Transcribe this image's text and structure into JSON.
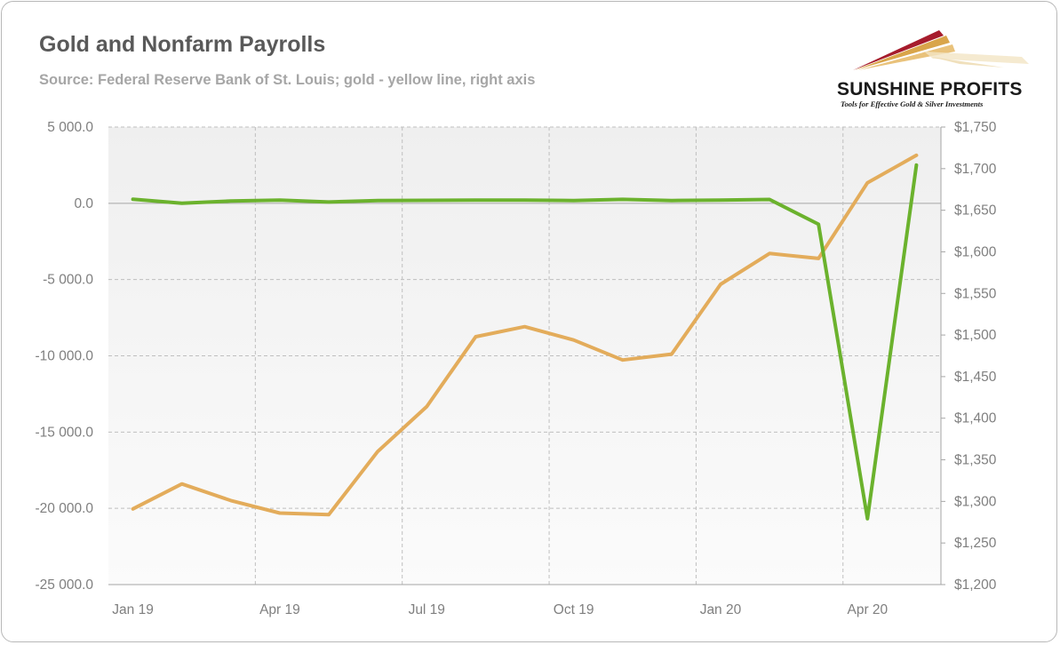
{
  "header": {
    "title": "Gold and Nonfarm Payrolls",
    "subtitle": "Source: Federal Reserve Bank of St. Louis; gold - yellow line, right axis"
  },
  "logo": {
    "name": "SUNSHINE PROFITS",
    "tagline": "Tools for Effective Gold & Silver Investments"
  },
  "chart_data": {
    "type": "line",
    "x": [
      "Jan 19",
      "Feb 19",
      "Mar 19",
      "Apr 19",
      "May 19",
      "Jun 19",
      "Jul 19",
      "Aug 19",
      "Sep 19",
      "Oct 19",
      "Nov 19",
      "Dec 19",
      "Jan 20",
      "Feb 20",
      "Mar 20",
      "Apr 20",
      "May 20"
    ],
    "x_tick_labels": [
      "Jan 19",
      "Apr 19",
      "Jul 19",
      "Oct 19",
      "Jan 20",
      "Apr 20"
    ],
    "series": [
      {
        "axis": "left",
        "color": "#6bb22d",
        "values": [
          269,
          1,
          147,
          210,
          85,
          182,
          194,
          207,
          208,
          185,
          261,
          184,
          214,
          251,
          -1373,
          -20679,
          2509
        ]
      },
      {
        "axis": "right",
        "color": "#e3ac5b",
        "values": [
          1291,
          1321,
          1301,
          1286,
          1284,
          1360,
          1414,
          1498,
          1510,
          1494,
          1470,
          1477,
          1561,
          1598,
          1592,
          1683,
          1716
        ]
      }
    ],
    "left_axis": {
      "ylim": [
        -25000,
        5000
      ],
      "ticks": [
        "5 000.0",
        "0.0",
        "-5 000.0",
        "-10 000.0",
        "-15 000.0",
        "-20 000.0",
        "-25 000.0"
      ]
    },
    "right_axis": {
      "ylim": [
        1200,
        1750
      ],
      "ticks": [
        "$1,750",
        "$1,700",
        "$1,650",
        "$1,600",
        "$1,550",
        "$1,500",
        "$1,450",
        "$1,400",
        "$1,350",
        "$1,300",
        "$1,250",
        "$1,200"
      ]
    },
    "grid": true,
    "legend": "none"
  },
  "colors": {
    "payrolls_line": "#6bb22d",
    "gold_line": "#e3ac5b",
    "grid": "#bfbfbf",
    "plot_background": "#f2f2f2"
  }
}
